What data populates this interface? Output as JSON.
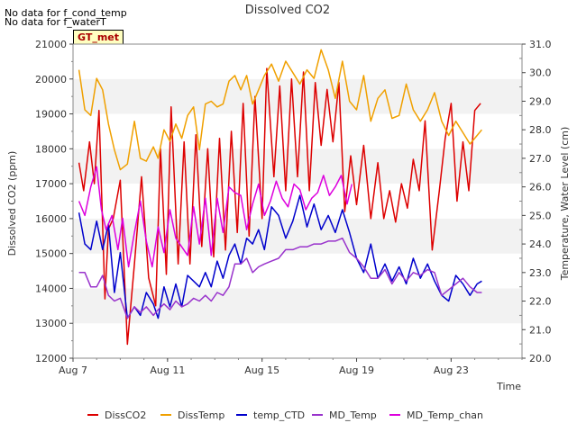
{
  "notes": [
    "No data for f_cond_temp",
    "No data for f_waterT"
  ],
  "badge": "GT_met",
  "colors": {
    "DissCO2": "#dd0000",
    "DissTemp": "#f0a000",
    "temp_CTD": "#0000cc",
    "MD_Temp": "#9933cc",
    "MD_Temp_chan": "#dd00dd"
  },
  "chart_data": {
    "type": "line",
    "title": "Dissolved CO2",
    "xlabel": "Time",
    "ylabel": "Dissolved CO2 (ppm)",
    "y2label": "Temperature, Water Level (cm)",
    "xlim": [
      0,
      19
    ],
    "ylim": [
      12000,
      21000
    ],
    "y2lim": [
      20.0,
      31.0
    ],
    "x_ticks": [
      {
        "x": 0,
        "label": "Aug 7"
      },
      {
        "x": 4,
        "label": "Aug 11"
      },
      {
        "x": 8,
        "label": "Aug 15"
      },
      {
        "x": 12,
        "label": "Aug 19"
      },
      {
        "x": 16,
        "label": "Aug 23"
      }
    ],
    "y_ticks": [
      12000,
      13000,
      14000,
      15000,
      16000,
      17000,
      18000,
      19000,
      20000,
      21000
    ],
    "y2_ticks": [
      "20.0",
      "21.0",
      "22.0",
      "23.0",
      "24.0",
      "25.0",
      "26.0",
      "27.0",
      "28.0",
      "29.0",
      "30.0",
      "31.0"
    ],
    "grid": "horizontal bands",
    "legend": "bottom",
    "series": [
      {
        "name": "DissCO2",
        "axis": "left",
        "color": "#dd0000",
        "x": [
          0.25,
          0.45,
          0.7,
          0.9,
          1.1,
          1.35,
          1.5,
          1.7,
          2.0,
          2.3,
          2.6,
          2.9,
          3.2,
          3.5,
          3.7,
          3.95,
          4.15,
          4.45,
          4.7,
          4.95,
          5.2,
          5.45,
          5.7,
          5.95,
          6.2,
          6.45,
          6.7,
          6.95,
          7.2,
          7.45,
          7.7,
          8.0,
          8.2,
          8.5,
          8.75,
          9.0,
          9.25,
          9.5,
          9.75,
          10.0,
          10.25,
          10.5,
          10.75,
          11.0,
          11.25,
          11.5,
          11.75,
          12.0,
          12.3,
          12.6,
          12.9,
          13.15,
          13.4,
          13.65,
          13.9,
          14.15,
          14.4,
          14.65,
          14.9,
          15.2,
          15.5,
          15.75,
          16.0,
          16.25,
          16.5,
          16.75,
          17.0,
          17.25
        ],
        "y": [
          17600,
          16800,
          18200,
          17000,
          19100,
          13700,
          15700,
          16000,
          17100,
          12400,
          14700,
          17200,
          14300,
          13500,
          18000,
          14400,
          19200,
          14700,
          18200,
          14700,
          18400,
          15200,
          18000,
          14900,
          18300,
          15100,
          18500,
          15600,
          19300,
          15500,
          19500,
          16000,
          20300,
          17200,
          19800,
          16800,
          20000,
          17200,
          20200,
          16800,
          19900,
          18100,
          19700,
          18200,
          19900,
          16200,
          17800,
          16400,
          18100,
          16000,
          17600,
          16000,
          16800,
          15900,
          17000,
          16300,
          17700,
          16800,
          18800,
          15100,
          16800,
          18300,
          19300,
          16500,
          18200,
          16800,
          19100,
          19300
        ]
      },
      {
        "name": "DissTemp",
        "axis": "right",
        "color": "#f0a000",
        "x": [
          0.25,
          0.5,
          0.75,
          1.0,
          1.25,
          1.5,
          1.75,
          2.0,
          2.3,
          2.6,
          2.85,
          3.1,
          3.4,
          3.6,
          3.85,
          4.1,
          4.35,
          4.6,
          4.85,
          5.1,
          5.35,
          5.6,
          5.85,
          6.1,
          6.35,
          6.6,
          6.85,
          7.1,
          7.35,
          7.6,
          7.85,
          8.1,
          8.4,
          8.7,
          9.0,
          9.3,
          9.6,
          9.9,
          10.2,
          10.5,
          10.8,
          11.1,
          11.4,
          11.7,
          12.0,
          12.3,
          12.6,
          12.9,
          13.2,
          13.5,
          13.8,
          14.1,
          14.4,
          14.7,
          15.0,
          15.3,
          15.6,
          15.9,
          16.2,
          16.5,
          16.8,
          17.1,
          17.3
        ],
        "y": [
          30.1,
          28.7,
          28.5,
          29.8,
          29.4,
          28.2,
          27.3,
          26.6,
          26.8,
          28.3,
          27.0,
          26.9,
          27.4,
          27.0,
          28.0,
          27.6,
          28.2,
          27.7,
          28.5,
          28.8,
          27.3,
          28.9,
          29.0,
          28.8,
          28.9,
          29.7,
          29.9,
          29.4,
          29.9,
          28.9,
          29.4,
          29.9,
          30.3,
          29.7,
          30.4,
          30.0,
          29.6,
          30.1,
          29.8,
          30.8,
          30.1,
          29.1,
          30.4,
          29.0,
          28.7,
          29.9,
          28.3,
          29.1,
          29.4,
          28.4,
          28.5,
          29.6,
          28.7,
          28.3,
          28.7,
          29.3,
          28.3,
          27.8,
          28.3,
          27.9,
          27.5,
          27.8,
          28.0
        ]
      },
      {
        "name": "temp_CTD",
        "axis": "right",
        "color": "#0000cc",
        "x": [
          0.25,
          0.5,
          0.75,
          1.0,
          1.25,
          1.5,
          1.75,
          2.0,
          2.3,
          2.6,
          2.85,
          3.1,
          3.4,
          3.6,
          3.85,
          4.1,
          4.35,
          4.6,
          4.85,
          5.1,
          5.35,
          5.6,
          5.85,
          6.1,
          6.35,
          6.6,
          6.85,
          7.1,
          7.35,
          7.6,
          7.85,
          8.1,
          8.4,
          8.7,
          9.0,
          9.3,
          9.6,
          9.9,
          10.2,
          10.5,
          10.8,
          11.1,
          11.4,
          11.7,
          12.0,
          12.3,
          12.6,
          12.9,
          13.2,
          13.5,
          13.8,
          14.1,
          14.4,
          14.7,
          15.0,
          15.3,
          15.6,
          15.9,
          16.2,
          16.5,
          16.8,
          17.1,
          17.3
        ],
        "y": [
          25.1,
          24.0,
          23.8,
          24.8,
          23.8,
          24.7,
          22.3,
          23.7,
          21.4,
          21.8,
          21.5,
          22.3,
          21.9,
          21.4,
          22.5,
          21.8,
          22.6,
          21.8,
          22.9,
          22.7,
          22.5,
          23.0,
          22.5,
          23.4,
          22.8,
          23.6,
          24.0,
          23.3,
          24.2,
          24.0,
          24.5,
          23.8,
          25.3,
          25.0,
          24.2,
          24.8,
          25.7,
          24.6,
          25.4,
          24.5,
          25.0,
          24.4,
          25.2,
          24.4,
          23.5,
          23.0,
          24.0,
          22.8,
          23.3,
          22.7,
          23.2,
          22.6,
          23.5,
          22.8,
          23.3,
          22.7,
          22.2,
          22.0,
          22.9,
          22.6,
          22.2,
          22.6,
          22.7
        ]
      },
      {
        "name": "MD_Temp",
        "axis": "right",
        "color": "#9933cc",
        "x": [
          0.25,
          0.5,
          0.75,
          1.0,
          1.25,
          1.5,
          1.75,
          2.0,
          2.3,
          2.6,
          2.85,
          3.1,
          3.4,
          3.6,
          3.85,
          4.1,
          4.35,
          4.6,
          4.85,
          5.1,
          5.35,
          5.6,
          5.85,
          6.1,
          6.35,
          6.6,
          6.85,
          7.1,
          7.35,
          7.6,
          7.85,
          8.1,
          8.4,
          8.7,
          9.0,
          9.3,
          9.6,
          9.9,
          10.2,
          10.5,
          10.8,
          11.1,
          11.4,
          11.7,
          12.0,
          12.3,
          12.6,
          12.9,
          13.2,
          13.5,
          13.8,
          14.1,
          14.4,
          14.7,
          15.0,
          15.3,
          15.6,
          15.9,
          16.2,
          16.5,
          16.8,
          17.1,
          17.3
        ],
        "y": [
          23.0,
          23.0,
          22.5,
          22.5,
          22.9,
          22.2,
          22.0,
          22.1,
          21.4,
          21.8,
          21.6,
          21.8,
          21.5,
          21.7,
          21.9,
          21.7,
          22.0,
          21.8,
          21.9,
          22.1,
          22.0,
          22.2,
          22.0,
          22.3,
          22.2,
          22.5,
          23.3,
          23.3,
          23.5,
          23.0,
          23.2,
          23.3,
          23.4,
          23.5,
          23.8,
          23.8,
          23.9,
          23.9,
          24.0,
          24.0,
          24.1,
          24.1,
          24.2,
          23.7,
          23.5,
          23.2,
          22.8,
          22.8,
          23.1,
          22.6,
          23.0,
          22.7,
          23.0,
          22.9,
          23.1,
          23.0,
          22.2,
          22.4,
          22.6,
          22.8,
          22.5,
          22.3,
          22.3
        ]
      },
      {
        "name": "MD_Temp_chan",
        "axis": "right",
        "color": "#dd00dd",
        "x": [
          0.25,
          0.5,
          0.75,
          1.0,
          1.2,
          1.4,
          1.65,
          1.9,
          2.1,
          2.35,
          2.6,
          2.85,
          3.1,
          3.35,
          3.6,
          3.85,
          4.1,
          4.35,
          4.6,
          4.85,
          5.1,
          5.35,
          5.6,
          5.85,
          6.1,
          6.35,
          6.6,
          6.85,
          7.1,
          7.35,
          7.6,
          7.85,
          8.1,
          8.35,
          8.6,
          8.85,
          9.1,
          9.35,
          9.6,
          9.85,
          10.1,
          10.35,
          10.6,
          10.85,
          11.1,
          11.35,
          11.6,
          11.8
        ],
        "y": [
          25.5,
          25.0,
          26.0,
          26.7,
          25.2,
          24.5,
          25.0,
          23.8,
          24.9,
          23.2,
          24.4,
          25.5,
          24.1,
          23.2,
          24.6,
          23.7,
          25.2,
          24.2,
          23.9,
          23.6,
          25.3,
          24.0,
          25.6,
          23.6,
          25.6,
          24.4,
          26.0,
          25.8,
          25.7,
          24.5,
          25.4,
          26.1,
          25.0,
          25.5,
          26.2,
          25.6,
          25.3,
          26.1,
          25.9,
          25.2,
          25.6,
          25.8,
          26.4,
          25.7,
          26.0,
          26.4,
          25.4,
          26.1
        ]
      }
    ]
  }
}
